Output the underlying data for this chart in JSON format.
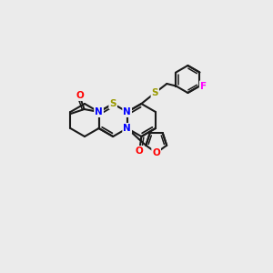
{
  "background_color": "#ebebeb",
  "bond_color": "#1a1a1a",
  "atom_colors": {
    "N": "#0000ff",
    "O": "#ff0000",
    "S": "#999900",
    "F": "#ff00ff",
    "C": "#1a1a1a"
  },
  "figsize": [
    3.0,
    3.0
  ],
  "dpi": 100
}
